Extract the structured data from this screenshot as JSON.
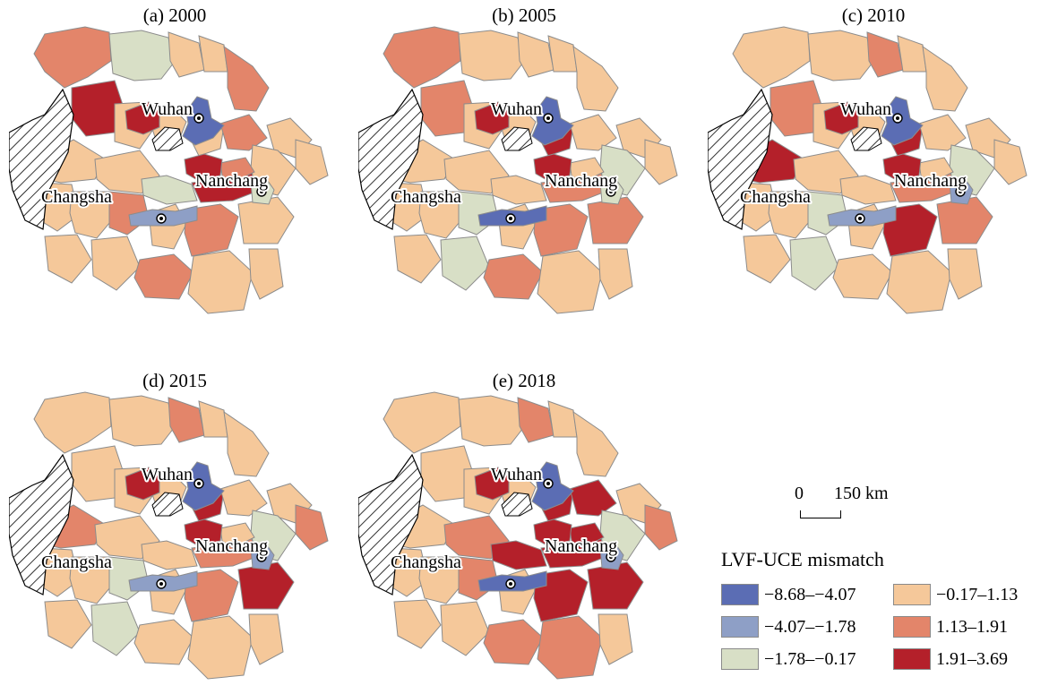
{
  "panels": [
    {
      "title": "(a) 2000"
    },
    {
      "title": "(b) 2005"
    },
    {
      "title": "(c) 2010"
    },
    {
      "title": "(d) 2015"
    },
    {
      "title": "(e) 2018"
    }
  ],
  "cities": [
    "Wuhan",
    "Nanchang",
    "Changsha"
  ],
  "scale": {
    "zero": "0",
    "distance": "150 km"
  },
  "legend": {
    "title": "LVF-UCE mismatch",
    "classes": [
      {
        "label": "−8.68–−4.07",
        "color": "#5b6db4"
      },
      {
        "label": "−4.07–−1.78",
        "color": "#8e9fc6"
      },
      {
        "label": "−1.78–−0.17",
        "color": "#d8dfc6"
      },
      {
        "label": "−0.17–1.13",
        "color": "#f5c89a"
      },
      {
        "label": "1.13–1.91",
        "color": "#e3856a"
      },
      {
        "label": "1.91–3.69",
        "color": "#b4202a"
      }
    ]
  }
}
